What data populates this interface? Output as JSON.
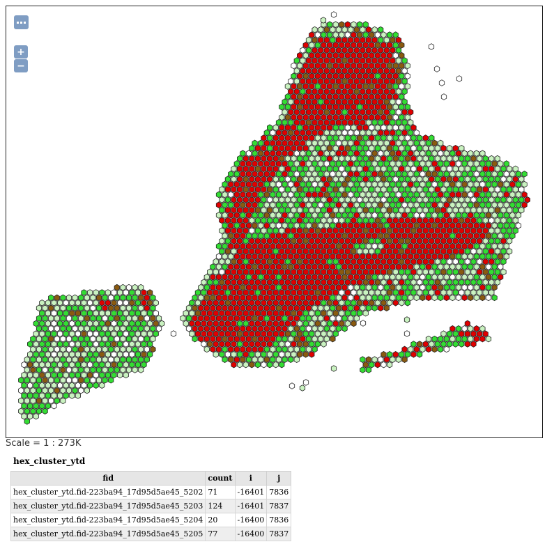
{
  "map": {
    "controls": {
      "pan_label": "",
      "zoom_in": "+",
      "zoom_out": "−"
    },
    "colors": {
      "high": "#e00000",
      "mid": "#8a5a10",
      "green": "#33dd33",
      "light": "#c9f2c0",
      "empty": "#ffffff",
      "stroke": "#222222"
    },
    "scale_text": "Scale = 1 : 273K"
  },
  "layer": {
    "title": "hex_cluster_ytd",
    "columns": [
      "fid",
      "count",
      "i",
      "j"
    ],
    "rows": [
      [
        "hex_cluster_ytd.fid-223ba94_17d95d5ae45_5202",
        "71",
        "-16401",
        "7836"
      ],
      [
        "hex_cluster_ytd.fid-223ba94_17d95d5ae45_5203",
        "124",
        "-16401",
        "7837"
      ],
      [
        "hex_cluster_ytd.fid-223ba94_17d95d5ae45_5204",
        "20",
        "-16400",
        "7836"
      ],
      [
        "hex_cluster_ytd.fid-223ba94_17d95d5ae45_5205",
        "77",
        "-16400",
        "7837"
      ]
    ]
  }
}
